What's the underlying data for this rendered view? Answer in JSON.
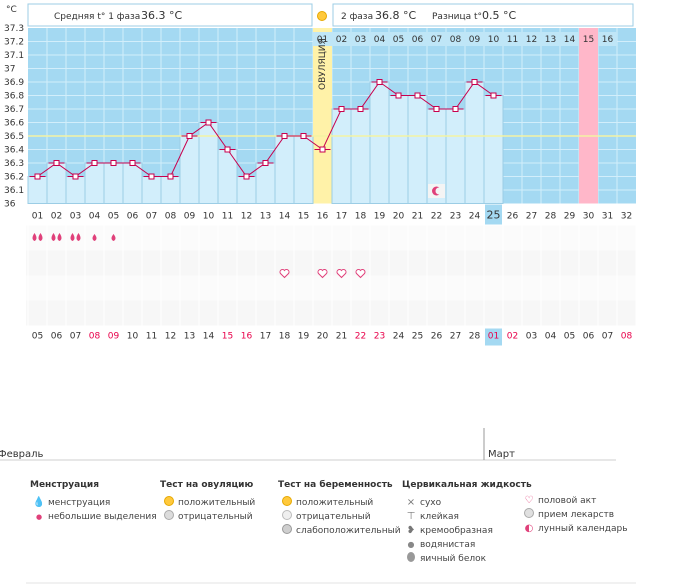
{
  "header": {
    "unit": "°C",
    "phase1_label": "Средняя t° 1 фаза",
    "phase1_value": "36.3 °C",
    "phase2_label": "2 фаза",
    "phase2_value": "36.8 °C",
    "diff_label": "Разница t°",
    "diff_value": "0.5 °C"
  },
  "ovulation": {
    "label": "ОВУЛЯЦИЯ",
    "cycle_day": 16
  },
  "chart_data": {
    "type": "line",
    "title": "",
    "ylabel": "°C",
    "ylim": [
      36.0,
      37.3
    ],
    "y_ticks": [
      "37.3",
      "37.2",
      "37.1",
      "37",
      "36.9",
      "36.8",
      "36.7",
      "36.6",
      "36.5",
      "36.4",
      "36.3",
      "36.2",
      "36.1",
      "36"
    ],
    "cycle_days": [
      "01",
      "02",
      "03",
      "04",
      "05",
      "06",
      "07",
      "08",
      "09",
      "10",
      "11",
      "12",
      "13",
      "14",
      "15",
      "16",
      "17",
      "18",
      "19",
      "20",
      "21",
      "22",
      "23",
      "24",
      "25",
      "26",
      "27",
      "28",
      "29",
      "30",
      "31",
      "32"
    ],
    "temperatures": [
      36.2,
      36.3,
      36.2,
      36.3,
      36.3,
      36.3,
      36.2,
      36.2,
      36.5,
      36.6,
      36.4,
      36.2,
      36.3,
      36.5,
      36.5,
      36.4,
      36.7,
      36.7,
      36.9,
      36.8,
      36.8,
      36.7,
      36.7,
      36.9,
      36.8
    ],
    "coverline": 36.5,
    "current_day": "25",
    "phase2_day_numbers": [
      "01",
      "02",
      "03",
      "04",
      "05",
      "06",
      "07",
      "08",
      "09",
      "10",
      "11",
      "12",
      "13",
      "14",
      "15",
      "16"
    ],
    "predicted_period_day": "15",
    "calendar_days": [
      "05",
      "06",
      "07",
      "08",
      "09",
      "10",
      "11",
      "12",
      "13",
      "14",
      "15",
      "16",
      "17",
      "18",
      "19",
      "20",
      "21",
      "22",
      "23",
      "24",
      "25",
      "26",
      "27",
      "28",
      "01",
      "02",
      "03",
      "04",
      "05",
      "06",
      "07",
      "08"
    ],
    "weekend_days": [
      "08",
      "09",
      "15",
      "16",
      "22",
      "23",
      "01",
      "02",
      "08"
    ],
    "month_february": "Февраль",
    "month_march": "Март",
    "menstruation_days": [
      1,
      2,
      3
    ],
    "small_discharge_days": [
      4,
      5
    ],
    "intercourse_days": [
      14,
      16,
      17,
      18
    ],
    "lunar_day": 22
  },
  "legend": {
    "menstruation": {
      "title": "Менструация",
      "items": [
        "менструация",
        "небольшие выделения"
      ]
    },
    "ovulation_test": {
      "title": "Тест на овуляцию",
      "items": [
        "положительный",
        "отрицательный"
      ]
    },
    "pregnancy_test": {
      "title": "Тест на беременность",
      "items": [
        "положительный",
        "отрицательный",
        "слабоположительный"
      ]
    },
    "cervical": {
      "title": "Цервикальная жидкость",
      "items": [
        "сухо",
        "клейкая",
        "кремообразная",
        "водянистая",
        "яичный белок"
      ]
    },
    "other": {
      "items": [
        "половой акт",
        "прием лекарств",
        "лунный календарь"
      ]
    }
  },
  "colors": {
    "grid_bg": "#a4d9f2",
    "grid_line": "#d2eefb",
    "bar_fill": "#d2eefb",
    "bar_stroke": "#9ccde5",
    "temp_line": "#c8004d",
    "coverline": "#f3f3a3",
    "ovulation_band": "#fff2a8",
    "period_band": "#ffb7c9",
    "weekend": "#e8004a",
    "pink": "#e0407a"
  }
}
